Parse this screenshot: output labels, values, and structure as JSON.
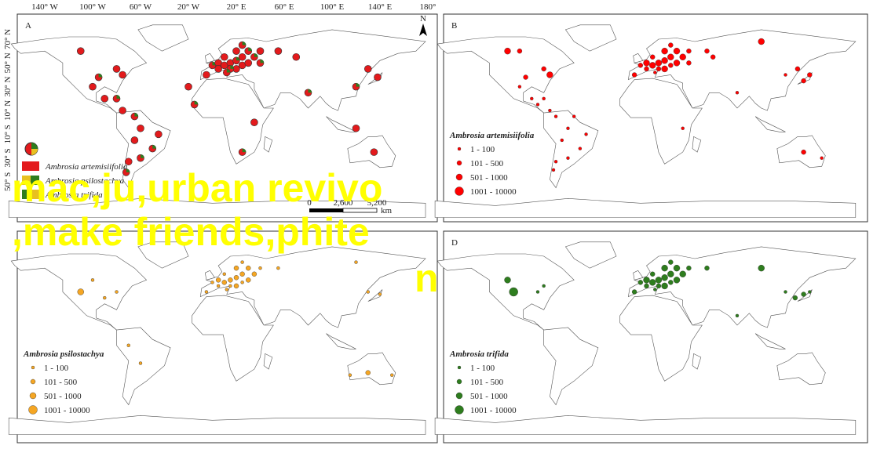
{
  "longitude_labels": [
    "140° W",
    "100° W",
    "60° W",
    "20° W",
    "20° E",
    "60° E",
    "100° E",
    "140° E",
    "180°"
  ],
  "latitude_labels": [
    "70° N",
    "50° N",
    "30° N",
    "10° N",
    "10° S",
    "30° S",
    "50° S"
  ],
  "north": "N",
  "scale_bar": {
    "ticks": [
      "0",
      "2,600",
      "5,200"
    ],
    "unit": "km"
  },
  "panels": [
    {
      "label": "A",
      "legend": {
        "items": [
          "Ambrosia artemisiifolia",
          "Ambrosia psilostachya",
          "Ambrosia trifida"
        ]
      }
    },
    {
      "label": "B",
      "legend": {
        "title": "Ambrosia artemisiifolia",
        "items": [
          "1 - 100",
          "101 - 500",
          "501 - 1000",
          "1001 - 10000"
        ]
      }
    },
    {
      "label": "C",
      "legend": {
        "title": "Ambrosia psilostachya",
        "items": [
          "1 - 100",
          "101 - 500",
          "501 - 1000",
          "1001 - 10000"
        ]
      }
    },
    {
      "label": "D",
      "legend": {
        "title": "Ambrosia trifida",
        "items": [
          "1 - 100",
          "101 - 500",
          "501 - 1000",
          "1001 - 10000"
        ]
      }
    }
  ],
  "overlay_text": [
    "mac,ju,urban revivo",
    ",make friends,phite",
    "n"
  ]
}
